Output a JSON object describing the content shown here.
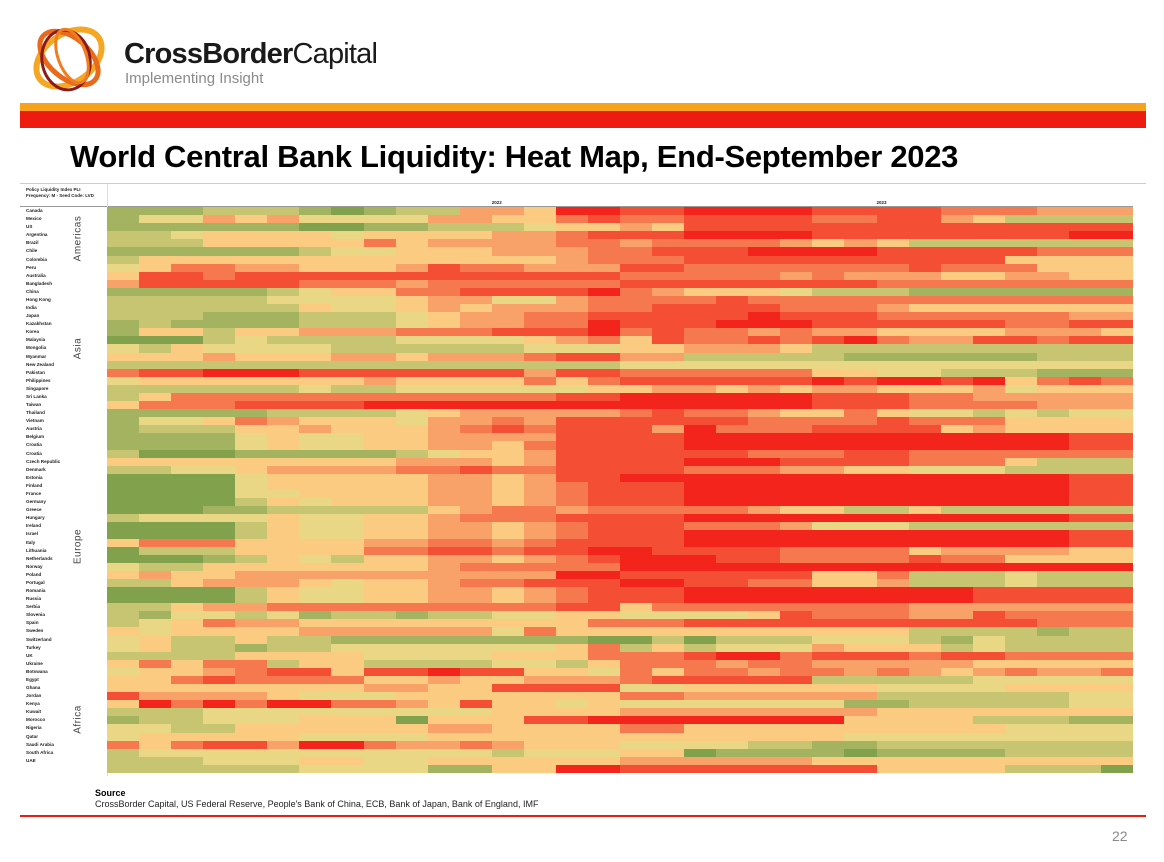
{
  "brand": {
    "name_bold": "CrossBorder",
    "name_light": "Capital",
    "tagline": "Implementing Insight"
  },
  "colors": {
    "orange_bar": "#f7a21b",
    "red_bar": "#ee1c10"
  },
  "slide": {
    "title": "World Central Bank Liquidity: Heat Map, End-September 2023",
    "page_number": "22"
  },
  "source": {
    "heading": "Source",
    "text": "CrossBorder Capital, US Federal Reserve, People's Bank of China, ECB, Bank of Japan, Bank of England, IMF"
  },
  "chart_data": {
    "type": "heatmap",
    "header_lines": [
      "Policy Liquidity Index PLI",
      "Frequency: M - Seed Code: LVD"
    ],
    "year_labels": [
      {
        "label": "2022",
        "column": 12
      },
      {
        "label": "2023",
        "column": 24
      }
    ],
    "regions": [
      {
        "label": "Americas",
        "rows": [
          0,
          8
        ]
      },
      {
        "label": "Asia",
        "rows": [
          8,
          27
        ]
      },
      {
        "label": "Europe",
        "rows": [
          27,
          57
        ]
      },
      {
        "label": "Africa",
        "rows": [
          57,
          70
        ]
      }
    ],
    "color_scale": {
      "low": "#5e8f3a",
      "mid": "#fbe08e",
      "high": "#f2241c",
      "range": [
        0,
        9
      ]
    },
    "rows": [
      "Canada",
      "Mexico",
      "US",
      "Argentina",
      "Brazil",
      "Chile",
      "Colombia",
      "Peru",
      "Australia",
      "Bangladesh",
      "China",
      "Hong Kong",
      "India",
      "Japan",
      "Kazakhstan",
      "Korea",
      "Malaysia",
      "Mongolia",
      "Myanmar",
      "New Zealand",
      "Pakistan",
      "Philippines",
      "Singapore",
      "Sri Lanka",
      "Taiwan",
      "Thailand",
      "Vietnam",
      "Austria",
      "Belgium",
      "Croatia",
      "Croatia",
      "Czech Republic",
      "Denmark",
      "Estonia",
      "Finland",
      "France",
      "Germany",
      "Greece",
      "Hungary",
      "Ireland",
      "Israel",
      "Italy",
      "Lithuania",
      "Netherlands",
      "Norway",
      "Poland",
      "Portugal",
      "Romania",
      "Russia",
      "Serbia",
      "Slovenia",
      "Spain",
      "Sweden",
      "Switzerland",
      "Turkey",
      "UK",
      "Ukraine",
      "Botswana",
      "Egypt",
      "Ghana",
      "Jordan",
      "Kenya",
      "Kuwait",
      "Morocco",
      "Nigeria",
      "Qatar",
      "Saudi Arabia",
      "South Africa",
      "UAE",
      ""
    ],
    "values": [
      "22233321233665998899998888777666",
      "24465644446655787788887788653333",
      "22222211223334556588888888888888",
      "33455554555566788899998888888899",
      "33355555756666776777765653333333",
      "22222234455566677888999988888777",
      "35555555555555677788888888885555",
      "45776655568776668877777778777555",
      "58878888888888887777767666556655",
      "68888877767777778888888877777777",
      "22222345577888897655543332222222",
      "33333444456644677778777777777777",
      "33333354456566677888877765555555",
      "33322233345667788888988877777766",
      "23222233345667798889998888887788",
      "25535566677788897877676655556665",
      "11134333344445675877878976688788",
      "43544443333334445566653333333333",
      "55565556656667886633333222222333",
      "33333333333333334444444444444444",
      "78899988888886887777775544333222",
      "45555555655557578888889899895787",
      "33333343344444455665656655564555",
      "35777777777777889999998887766666",
      "57778888999999999999998887777666",
      "22222333345666667877655754434344",
      "24457655546676888888777787775555",
      "23335565556787888697778888565555",
      "22224544556666888899999999999988",
      "22224544556657888899999999999988",
      "31112222234556888888777887777777",
      "55555555566656888899988887775333",
      "33445666677877888877766554443333",
      "11114555556656889999999999999988",
      "11114555556656788899999999999988",
      "11114455556656788899999999999988",
      "11113545556656788899999999999988",
      "11122333335677677777655335333333",
      "34444544556777888899999999999988",
      "11113544556656788877764443333333",
      "11113544556656788899999999999988",
      "57775555667767888899999999999988",
      "13335555778878899888877775666655",
      "11123543556656789998877778775555",
      "43355555556777779999999999999999",
      "56556666666666998888885573334333",
      "33566654556778889988775563334333",
      "11113544556656788899999999988888",
      "11113544556656788899999999988888",
      "33566777777777885777777776666666",
      "32443423323344554444587776687777",
      "34576655555555577788888888888777",
      "54555566666647555555555553333233",
      "45335332222222211313334443243333",
      "45332334444444573534446555343333",
      "33335555444455577789978887887777",
      "57577355333344357776776666655555",
      "45567885889885547577677676567667",
      "55787777556556667888883333344444",
      "55555555665588884455555544445555",
      "86666544455555557766666633333344",
      "59797997765855454444444223333344",
      "33344444444455556666666655555555",
      "23344455515558899999999555533322",
      "44335555556655557755555555554444",
      "45555544445555555555555444444444",
      "75788699766765554444332233333333",
      "34444444444434445512222122223333",
      "33344455445555556666665555555555",
      "33333344442255998888888855553331"
    ]
  }
}
